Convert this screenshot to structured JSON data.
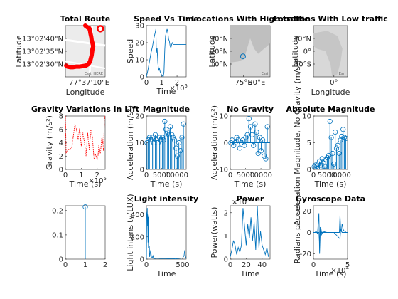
{
  "chart_data": [
    {
      "type": "map",
      "title": "Total Route",
      "xlabel": "Longitude",
      "ylabel": "Latitude",
      "xticks": [
        "77°37'10\"E"
      ],
      "yticks": [
        "13°02'40\"N",
        "13°02'35\"N",
        "13°02'30\"N"
      ],
      "basemap_credit": "Esri, HERE",
      "route": [
        [
          0.5,
          1.0
        ],
        [
          0.55,
          0.97
        ],
        [
          0.6,
          0.95
        ],
        [
          0.62,
          0.9
        ],
        [
          0.63,
          0.85
        ],
        [
          0.65,
          0.78
        ],
        [
          0.66,
          0.72
        ],
        [
          0.68,
          0.66
        ],
        [
          0.7,
          0.6
        ],
        [
          0.68,
          0.54
        ],
        [
          0.67,
          0.48
        ],
        [
          0.66,
          0.42
        ],
        [
          0.64,
          0.36
        ],
        [
          0.62,
          0.3
        ],
        [
          0.58,
          0.25
        ],
        [
          0.52,
          0.22
        ],
        [
          0.44,
          0.21
        ],
        [
          0.36,
          0.2
        ],
        [
          0.28,
          0.2
        ],
        [
          0.2,
          0.19
        ],
        [
          0.12,
          0.19
        ],
        [
          0.05,
          0.2
        ],
        [
          0.02,
          0.22
        ]
      ],
      "route_end": [
        0.88,
        0.94
      ]
    },
    {
      "type": "line",
      "title": "Speed Vs Time",
      "xlabel": "Time",
      "ylabel": "Speed",
      "xlim": [
        0,
        260000
      ],
      "ylim": [
        0,
        30
      ],
      "xticks": [
        0,
        1,
        2
      ],
      "yticks": [
        0,
        10,
        20,
        30
      ],
      "x_exponent": "×10^5",
      "series": [
        {
          "name": "speed",
          "x": [
            0,
            10000,
            20000,
            30000,
            40000,
            50000,
            55000,
            60000,
            62000,
            65000,
            70000,
            75000,
            80000,
            85000,
            90000,
            95000,
            100000,
            110000,
            115000,
            120000,
            125000,
            130000,
            135000,
            140000,
            145000,
            150000,
            155000,
            160000,
            165000,
            170000,
            175000,
            180000,
            190000,
            200000,
            220000,
            240000,
            260000
          ],
          "y": [
            0,
            4,
            9,
            14,
            18,
            23,
            25,
            27,
            28,
            14,
            17,
            8,
            4,
            5,
            3,
            2,
            1,
            0,
            3,
            16,
            24,
            26,
            28,
            26,
            22,
            21,
            18,
            17,
            19,
            20,
            19,
            19,
            19,
            19,
            19,
            19,
            19
          ]
        }
      ]
    },
    {
      "type": "map",
      "title": "Locations With High traffic",
      "xlabel": "",
      "ylabel": "Latitude",
      "xticks": [
        "75°E",
        "90°E"
      ],
      "yticks": [
        "30°N",
        "20°N",
        "10°N"
      ],
      "basemap_credit": "Esri",
      "marker": [
        0.32,
        0.6
      ]
    },
    {
      "type": "map",
      "title": "Locations With Low traffic",
      "xlabel": "Longitude",
      "ylabel": "Latitude",
      "xticks": [
        "0°"
      ],
      "yticks": [
        "30°N",
        "0°",
        "30°S"
      ],
      "basemap_credit": "Esri"
    },
    {
      "type": "line",
      "title": "Gravity Variations in Lift",
      "xlabel": "Time (s)",
      "ylabel": "Gravity (m/s²)",
      "xlim": [
        0,
        250000
      ],
      "ylim": [
        0,
        8
      ],
      "xticks": [
        0,
        1,
        2
      ],
      "yticks": [
        0,
        2,
        4,
        6,
        8
      ],
      "x_exponent": "×10^5",
      "series": [
        {
          "name": "gravity",
          "x": [
            0,
            5000,
            20000,
            40000,
            50000,
            60000,
            70000,
            80000,
            90000,
            100000,
            110000,
            120000,
            130000,
            140000,
            150000,
            160000,
            170000,
            180000,
            190000,
            200000,
            205000,
            210000,
            220000,
            230000,
            240000,
            245000,
            250000
          ],
          "y": [
            8,
            2.5,
            3.0,
            3.2,
            5.0,
            6.8,
            6.0,
            4.5,
            6.2,
            3.5,
            5.5,
            4.0,
            2.0,
            5.5,
            3.0,
            6.0,
            4.8,
            1.6,
            2.2,
            1.5,
            2.0,
            3.6,
            2.4,
            5.0,
            2.8,
            7.5,
            8
          ]
        }
      ]
    },
    {
      "type": "stem",
      "title": "Magnitude",
      "xlabel": "Time (s)",
      "ylabel": "Acceleration (m/s²)",
      "xlim": [
        0,
        13000
      ],
      "ylim": [
        0,
        20
      ],
      "xticks": [
        0,
        5000,
        10000
      ],
      "yticks": [
        0,
        10,
        20
      ],
      "x": [
        200,
        600,
        1000,
        1500,
        2000,
        2400,
        2900,
        3300,
        3800,
        4300,
        4700,
        5200,
        5600,
        6000,
        6400,
        6900,
        7300,
        7800,
        8300,
        8700,
        9200,
        9700,
        10100,
        10600,
        11100,
        11600,
        12100
      ],
      "y": [
        10,
        11,
        12,
        11,
        12,
        10,
        13,
        11,
        10,
        12,
        11,
        12,
        11,
        18,
        15,
        14,
        13,
        16,
        13,
        12,
        11,
        8,
        5,
        10,
        7,
        12,
        17
      ]
    },
    {
      "type": "stem",
      "title": "No Gravity",
      "xlabel": "Time (s)",
      "ylabel": "Acceleration (m/s²)",
      "xlim": [
        0,
        13000
      ],
      "ylim": [
        -10,
        10
      ],
      "xticks": [
        0,
        5000,
        10000
      ],
      "yticks": [
        -10,
        0,
        10
      ],
      "x": [
        200,
        600,
        1100,
        1600,
        2100,
        2600,
        3100,
        3600,
        4100,
        4600,
        5100,
        5600,
        6100,
        6600,
        7100,
        7600,
        8100,
        8600,
        9100,
        9600,
        10100,
        10600,
        11100,
        11600,
        12100
      ],
      "y": [
        0,
        1,
        -1,
        0,
        2,
        1,
        -2,
        0,
        1,
        -1,
        2,
        3,
        9,
        6,
        3,
        -1,
        7,
        4,
        -4,
        2,
        -3,
        1,
        -5,
        -6,
        6
      ]
    },
    {
      "type": "stem",
      "title": "Absolute Magnitude",
      "xlabel": "Time (s)",
      "ylabel": "Acceleration Magnitude, No Gravity (m/s²)",
      "xlim": [
        0,
        13000
      ],
      "ylim": [
        0,
        10
      ],
      "xticks": [
        0,
        5000,
        10000
      ],
      "yticks": [
        0,
        5,
        10
      ],
      "x": [
        300,
        800,
        1300,
        1800,
        2300,
        2800,
        3300,
        3800,
        4300,
        4800,
        5300,
        5800,
        6300,
        6800,
        7300,
        7800,
        8300,
        8800,
        9300,
        9800,
        10300,
        10800,
        11300,
        11800,
        12300
      ],
      "y": [
        0.5,
        0.8,
        0.6,
        1.0,
        1.5,
        0.8,
        2.0,
        1.2,
        0.6,
        1.8,
        2.2,
        2.6,
        9.0,
        6.0,
        3.0,
        1.0,
        7.0,
        4.0,
        4.5,
        3.0,
        5.5,
        6.2,
        7.5,
        6.0,
        5.8
      ]
    },
    {
      "type": "stem",
      "title": "",
      "xlabel": "",
      "ylabel": "",
      "xlim": [
        0,
        2
      ],
      "ylim": [
        0,
        0.22
      ],
      "xticks": [
        0,
        1,
        2
      ],
      "yticks": [
        0,
        0.1,
        0.2
      ],
      "x": [
        1
      ],
      "y": [
        0.215
      ]
    },
    {
      "type": "line",
      "title": "Light intensity",
      "xlabel": "Time",
      "ylabel": "Light intensity(LUX)",
      "xlim": [
        0,
        550
      ],
      "ylim": [
        0,
        480
      ],
      "xticks": [
        0,
        500
      ],
      "yticks": [
        0,
        200,
        400
      ],
      "series": [
        {
          "name": "lux",
          "x": [
            0,
            5,
            8,
            12,
            15,
            18,
            22,
            25,
            28,
            32,
            35,
            40,
            45,
            50,
            60,
            70,
            80,
            90,
            100,
            150,
            200,
            250,
            300,
            350,
            400,
            450,
            500,
            520,
            530,
            540,
            550
          ],
          "y": [
            0,
            420,
            380,
            460,
            300,
            400,
            150,
            380,
            100,
            250,
            60,
            120,
            20,
            40,
            80,
            15,
            10,
            30,
            5,
            8,
            5,
            6,
            4,
            5,
            3,
            6,
            10,
            30,
            80,
            20,
            5
          ]
        }
      ]
    },
    {
      "type": "line",
      "title": "Power",
      "xlabel": "Time",
      "ylabel": "Power(watts)",
      "xlim": [
        0,
        50
      ],
      "ylim": [
        0,
        2.3
      ],
      "xticks": [
        0,
        20,
        40
      ],
      "yticks": [
        0,
        1,
        2
      ],
      "y_exponent": "×10^-6",
      "series": [
        {
          "name": "power",
          "x": [
            0,
            2,
            4,
            6,
            8,
            10,
            12,
            14,
            16,
            18,
            20,
            22,
            24,
            26,
            28,
            30,
            32,
            34,
            36,
            38,
            40,
            42,
            44,
            46,
            48
          ],
          "y": [
            0.1,
            0.4,
            0.8,
            0.6,
            0.2,
            0.5,
            0.3,
            0.6,
            2.2,
            1.4,
            0.6,
            1.5,
            0.9,
            1.8,
            0.8,
            1.6,
            0.4,
            2.3,
            0.5,
            1.2,
            0.6,
            0.4,
            0.2,
            0.5,
            0.1
          ]
        }
      ]
    },
    {
      "type": "line",
      "title": "Gyroscope Data",
      "xlabel": "Time (s)",
      "ylabel": "Radians per sec",
      "xlim": [
        0,
        50000
      ],
      "ylim": [
        -25,
        25
      ],
      "xticks": [
        0,
        5
      ],
      "yticks": [
        -20,
        0,
        20
      ],
      "x_exponent": "×10^4",
      "series": [
        {
          "name": "gyro_x",
          "x": [
            0,
            2000,
            4000,
            6000,
            8000,
            9000,
            10000,
            11000,
            12000,
            14000,
            20000,
            30000,
            38000,
            39000,
            40000,
            41000,
            42000,
            44000,
            46000,
            48000,
            50000
          ],
          "y": [
            0,
            0,
            1,
            -1,
            18,
            -20,
            0,
            4,
            -2,
            1,
            0,
            0,
            0,
            16,
            2,
            1,
            8,
            2,
            1,
            0,
            0
          ]
        },
        {
          "name": "gyro_y",
          "x": [
            0,
            8000,
            9000,
            10000,
            12000,
            20000,
            30000,
            39000,
            40000,
            42000,
            50000
          ],
          "y": [
            0,
            0,
            -10,
            5,
            0,
            0,
            0,
            -6,
            3,
            0,
            0
          ]
        }
      ]
    }
  ]
}
